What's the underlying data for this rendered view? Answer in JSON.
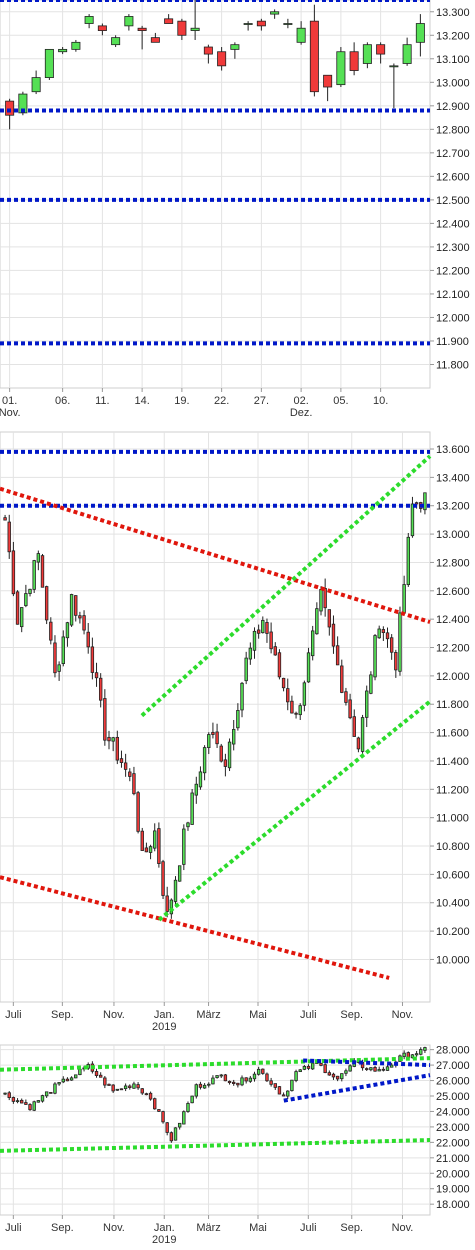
{
  "chart_data": [
    {
      "type": "candlestick",
      "ylim": [
        11.7,
        13.35
      ],
      "y_ticks": [
        11.8,
        11.9,
        12.0,
        12.1,
        12.2,
        12.3,
        12.4,
        12.5,
        12.6,
        12.7,
        12.8,
        12.9,
        13.0,
        13.1,
        13.2,
        13.3
      ],
      "y_tick_labels": [
        "11.800",
        "11.900",
        "12.000",
        "12.100",
        "12.200",
        "12.300",
        "12.400",
        "12.500",
        "12.600",
        "12.700",
        "12.800",
        "12.900",
        "13.000",
        "13.100",
        "13.200",
        "13.300"
      ],
      "x_tick_labels": [
        "01.\nNov.",
        "06.",
        "11.",
        "14.",
        "19.",
        "22.",
        "27.",
        "02.\nDez.",
        "05.",
        "10."
      ],
      "x_tick_index": [
        0,
        4,
        7,
        10,
        13,
        16,
        19,
        22,
        25,
        28
      ],
      "candles": [
        {
          "o": 12.92,
          "h": 12.93,
          "l": 12.8,
          "c": 12.86
        },
        {
          "o": 12.87,
          "h": 12.96,
          "l": 12.86,
          "c": 12.95
        },
        {
          "o": 12.96,
          "h": 13.05,
          "l": 12.95,
          "c": 13.02
        },
        {
          "o": 13.02,
          "h": 13.14,
          "l": 13.01,
          "c": 13.14
        },
        {
          "o": 13.13,
          "h": 13.15,
          "l": 13.12,
          "c": 13.14
        },
        {
          "o": 13.14,
          "h": 13.18,
          "l": 13.13,
          "c": 13.17
        },
        {
          "o": 13.25,
          "h": 13.29,
          "l": 13.23,
          "c": 13.28
        },
        {
          "o": 13.24,
          "h": 13.25,
          "l": 13.2,
          "c": 13.22
        },
        {
          "o": 13.16,
          "h": 13.2,
          "l": 13.15,
          "c": 13.19
        },
        {
          "o": 13.24,
          "h": 13.29,
          "l": 13.22,
          "c": 13.28
        },
        {
          "o": 13.23,
          "h": 13.24,
          "l": 13.14,
          "c": 13.22
        },
        {
          "o": 13.19,
          "h": 13.21,
          "l": 13.17,
          "c": 13.17
        },
        {
          "o": 13.27,
          "h": 13.29,
          "l": 13.25,
          "c": 13.25
        },
        {
          "o": 13.26,
          "h": 13.27,
          "l": 13.18,
          "c": 13.2
        },
        {
          "o": 13.22,
          "h": 13.35,
          "l": 13.18,
          "c": 13.23
        },
        {
          "o": 13.15,
          "h": 13.16,
          "l": 13.08,
          "c": 13.12
        },
        {
          "o": 13.13,
          "h": 13.15,
          "l": 13.05,
          "c": 13.07
        },
        {
          "o": 13.14,
          "h": 13.17,
          "l": 13.1,
          "c": 13.16
        },
        {
          "o": 13.25,
          "h": 13.26,
          "l": 13.22,
          "c": 13.25
        },
        {
          "o": 13.26,
          "h": 13.27,
          "l": 13.22,
          "c": 13.24
        },
        {
          "o": 13.29,
          "h": 13.31,
          "l": 13.27,
          "c": 13.3
        },
        {
          "o": 13.25,
          "h": 13.27,
          "l": 13.23,
          "c": 13.25
        },
        {
          "o": 13.17,
          "h": 13.26,
          "l": 13.16,
          "c": 13.23
        },
        {
          "o": 13.26,
          "h": 13.33,
          "l": 12.94,
          "c": 12.96
        },
        {
          "o": 13.03,
          "h": 13.03,
          "l": 12.92,
          "c": 12.98
        },
        {
          "o": 12.99,
          "h": 13.15,
          "l": 12.98,
          "c": 13.13
        },
        {
          "o": 13.13,
          "h": 13.17,
          "l": 13.03,
          "c": 13.05
        },
        {
          "o": 13.08,
          "h": 13.17,
          "l": 13.06,
          "c": 13.16
        },
        {
          "o": 13.16,
          "h": 13.17,
          "l": 13.08,
          "c": 13.12
        },
        {
          "o": 13.07,
          "h": 13.08,
          "l": 12.89,
          "c": 13.07
        },
        {
          "o": 13.08,
          "h": 13.19,
          "l": 13.07,
          "c": 13.16
        },
        {
          "o": 13.17,
          "h": 13.29,
          "l": 13.11,
          "c": 13.25
        }
      ],
      "lines": [
        {
          "color": "#0018c8",
          "y": 13.35
        },
        {
          "color": "#0018c8",
          "y": 12.88
        },
        {
          "color": "#0018c8",
          "y": 12.5
        },
        {
          "color": "#0018c8",
          "y": 11.89
        }
      ]
    },
    {
      "type": "candlestick",
      "ylim": [
        9.7,
        13.72
      ],
      "y_ticks": [
        10.0,
        10.2,
        10.4,
        10.6,
        10.8,
        11.0,
        11.2,
        11.4,
        11.6,
        11.8,
        12.0,
        12.2,
        12.4,
        12.6,
        12.8,
        13.0,
        13.2,
        13.4,
        13.6
      ],
      "y_tick_labels": [
        "10.000",
        "10.200",
        "10.400",
        "10.600",
        "10.800",
        "11.000",
        "11.200",
        "11.400",
        "11.600",
        "11.800",
        "12.000",
        "12.200",
        "12.400",
        "12.600",
        "12.800",
        "13.000",
        "13.200",
        "13.400",
        "13.600"
      ],
      "x_tick_labels": [
        "Juli",
        "Sep.",
        "Nov.",
        "Jan.\n2019",
        "März",
        "Mai",
        "Juli",
        "Sep.",
        "Nov."
      ],
      "x_tick_frac": [
        0.031,
        0.145,
        0.265,
        0.382,
        0.485,
        0.6,
        0.717,
        0.818,
        0.936
      ],
      "first_price": 13.1,
      "waypoints": [
        [
          0,
          13.1
        ],
        [
          3,
          12.4
        ],
        [
          8,
          12.85
        ],
        [
          12,
          12.0
        ],
        [
          16,
          12.55
        ],
        [
          20,
          12.25
        ],
        [
          24,
          11.6
        ],
        [
          28,
          11.4
        ],
        [
          31,
          11.2
        ],
        [
          33,
          10.7
        ],
        [
          36,
          10.9
        ],
        [
          39,
          10.3
        ],
        [
          44,
          11.0
        ],
        [
          49,
          11.6
        ],
        [
          53,
          11.4
        ],
        [
          58,
          12.1
        ],
        [
          62,
          12.4
        ],
        [
          66,
          12.0
        ],
        [
          70,
          11.7
        ],
        [
          76,
          12.55
        ],
        [
          81,
          11.95
        ],
        [
          85,
          11.5
        ],
        [
          90,
          12.4
        ],
        [
          94,
          12.1
        ],
        [
          98,
          13.2
        ],
        [
          101,
          13.25
        ]
      ],
      "lines": [
        {
          "color": "#0018c8",
          "y0": 13.58,
          "y1": 13.58
        },
        {
          "color": "#0018c8",
          "y0": 13.2,
          "y1": 13.2
        },
        {
          "color": "#e0160c",
          "x0": 0.0,
          "y0": 13.32,
          "x1": 1.0,
          "y1": 12.38
        },
        {
          "color": "#e0160c",
          "x0": 0.0,
          "y0": 10.58,
          "x1": 0.905,
          "y1": 9.87
        },
        {
          "color": "#2cdc2c",
          "x0": 0.33,
          "y0": 11.72,
          "x1": 1.0,
          "y1": 13.55
        },
        {
          "color": "#2cdc2c",
          "x0": 0.37,
          "y0": 10.28,
          "x1": 1.0,
          "y1": 11.82
        }
      ]
    },
    {
      "type": "candlestick",
      "ylim": [
        17.3,
        28.3
      ],
      "y_ticks": [
        18,
        19,
        20,
        21,
        22,
        23,
        24,
        25,
        26,
        27,
        28
      ],
      "y_tick_labels": [
        "18.000",
        "19.000",
        "20.000",
        "21.000",
        "22.000",
        "23.000",
        "24.000",
        "25.000",
        "26.000",
        "27.000",
        "28.000"
      ],
      "x_tick_labels": [
        "Juli",
        "Sep.",
        "Nov.",
        "Jan.\n2019",
        "März",
        "Mai",
        "Juli",
        "Sep.",
        "Nov."
      ],
      "x_tick_frac": [
        0.031,
        0.145,
        0.265,
        0.382,
        0.485,
        0.6,
        0.717,
        0.818,
        0.936
      ],
      "first_price": 25.1,
      "waypoints": [
        [
          0,
          25.1
        ],
        [
          6,
          24.3
        ],
        [
          12,
          25.6
        ],
        [
          20,
          26.9
        ],
        [
          26,
          25.3
        ],
        [
          31,
          25.8
        ],
        [
          35,
          24.9
        ],
        [
          40,
          22.2
        ],
        [
          46,
          25.6
        ],
        [
          52,
          26.3
        ],
        [
          56,
          25.8
        ],
        [
          61,
          26.7
        ],
        [
          67,
          25.0
        ],
        [
          70,
          26.5
        ],
        [
          75,
          27.1
        ],
        [
          80,
          26.1
        ],
        [
          84,
          27.1
        ],
        [
          90,
          26.6
        ],
        [
          96,
          27.6
        ],
        [
          101,
          27.95
        ]
      ],
      "lines": [
        {
          "color": "#2cdc2c",
          "x0": 0.0,
          "y0": 26.7,
          "x1": 1.0,
          "y1": 27.45
        },
        {
          "color": "#2cdc2c",
          "x0": 0.0,
          "y0": 21.45,
          "x1": 1.0,
          "y1": 22.15
        },
        {
          "color": "#0018c8",
          "x0": 0.705,
          "y0": 27.3,
          "x1": 1.0,
          "y1": 27.0
        },
        {
          "color": "#0018c8",
          "x0": 0.66,
          "y0": 24.7,
          "x1": 1.0,
          "y1": 26.35
        }
      ]
    }
  ]
}
